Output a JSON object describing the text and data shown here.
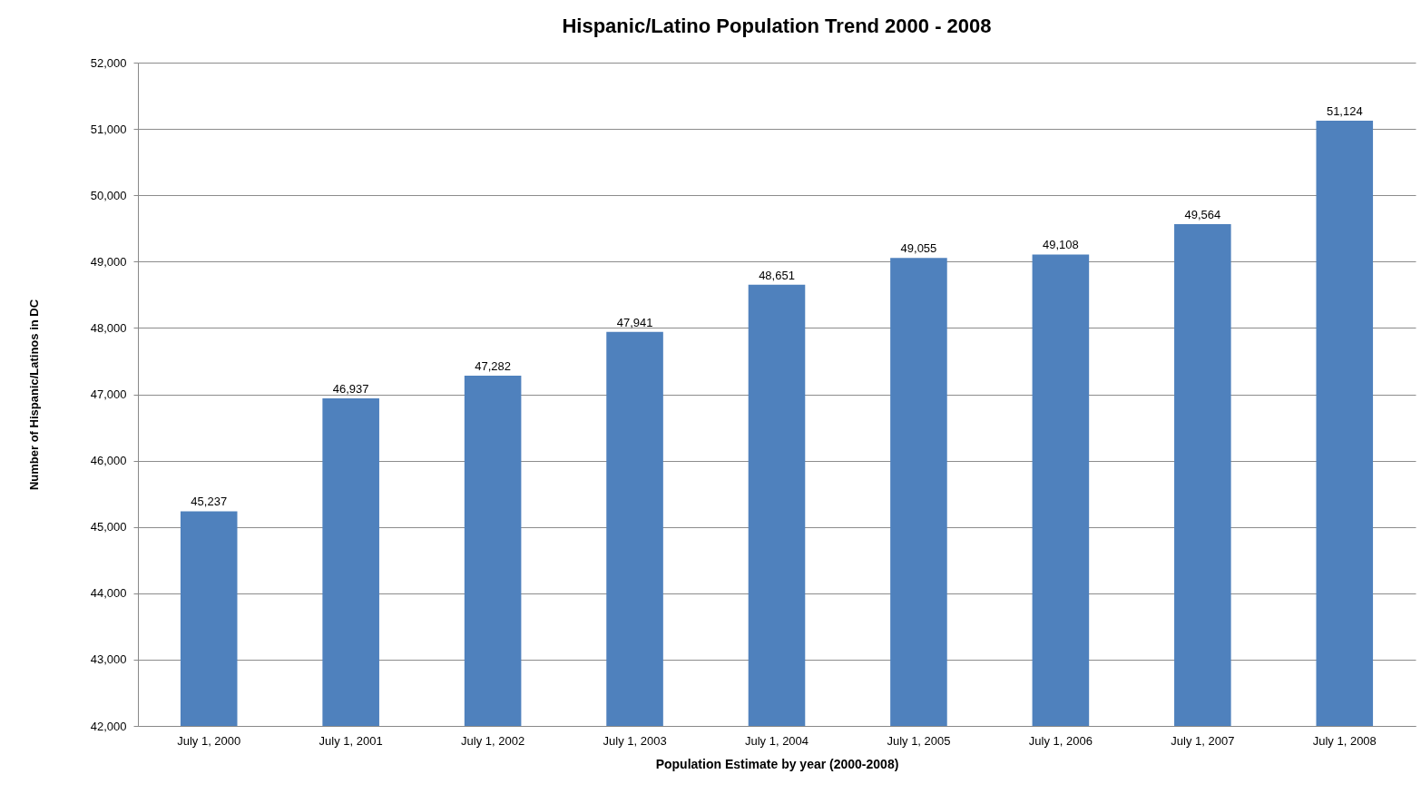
{
  "chart_data": {
    "type": "bar",
    "title": "Hispanic/Latino Population Trend 2000 - 2008",
    "xlabel": "Population Estimate by year (2000-2008)",
    "ylabel": "Number of Hispanic/Latinos in DC",
    "categories": [
      "July 1, 2000",
      "July 1, 2001",
      "July 1, 2002",
      "July 1, 2003",
      "July 1, 2004",
      "July 1, 2005",
      "July 1, 2006",
      "July 1, 2007",
      "July 1, 2008"
    ],
    "values": [
      45237,
      46937,
      47282,
      47941,
      48651,
      49055,
      49108,
      49564,
      51124
    ],
    "color": "#4f81bd",
    "ylim": [
      42000,
      52000
    ],
    "yticks": [
      {
        "value": 42000,
        "label": "42,000"
      },
      {
        "value": 43000,
        "label": "43,000"
      },
      {
        "value": 44000,
        "label": "44,000"
      },
      {
        "value": 45000,
        "label": "45,000"
      },
      {
        "value": 46000,
        "label": "46,000"
      },
      {
        "value": 47000,
        "label": "47,000"
      },
      {
        "value": 48000,
        "label": "48,000"
      },
      {
        "value": 49000,
        "label": "49,000"
      },
      {
        "value": 50000,
        "label": "50,000"
      },
      {
        "value": 51000,
        "label": "51,000"
      },
      {
        "value": 52000,
        "label": "52,000"
      }
    ],
    "value_labels": [
      "45,237",
      "46,937",
      "47,282",
      "47,941",
      "48,651",
      "49,055",
      "49,108",
      "49,564",
      "51,124"
    ],
    "grid": "y"
  }
}
